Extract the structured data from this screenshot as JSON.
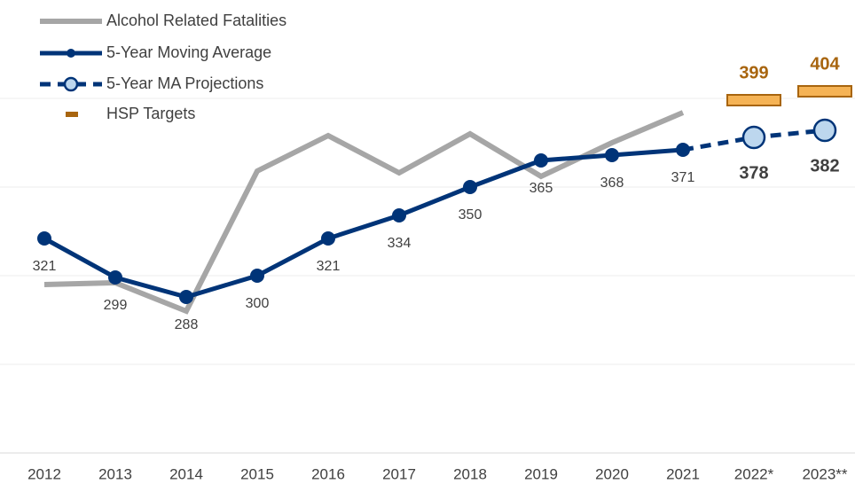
{
  "chart_data": {
    "type": "line",
    "categories": [
      "2012",
      "2013",
      "2014",
      "2015",
      "2016",
      "2017",
      "2018",
      "2019",
      "2020",
      "2021",
      "2022*",
      "2023**"
    ],
    "series": [
      {
        "name": "Alcohol Related Fatalities",
        "color": "#a6a6a6",
        "values": [
          295,
          296,
          280,
          359,
          379,
          358,
          380,
          356,
          375,
          392,
          null,
          null
        ]
      },
      {
        "name": "5-Year Moving Average",
        "color": "#003478",
        "values": [
          321,
          299,
          288,
          300,
          321,
          334,
          350,
          365,
          368,
          371,
          null,
          null
        ]
      },
      {
        "name": "5-Year MA Projections",
        "color": "#003478",
        "values": [
          null,
          null,
          null,
          null,
          null,
          null,
          null,
          null,
          null,
          371,
          378,
          382
        ]
      },
      {
        "name": "HSP Targets",
        "color": "#f5b355",
        "values": [
          null,
          null,
          null,
          null,
          null,
          null,
          null,
          null,
          null,
          null,
          399,
          404
        ]
      }
    ],
    "ylim": [
      200,
      415
    ],
    "yticks": [
      200,
      250,
      300,
      350,
      400
    ],
    "grid": true
  }
}
